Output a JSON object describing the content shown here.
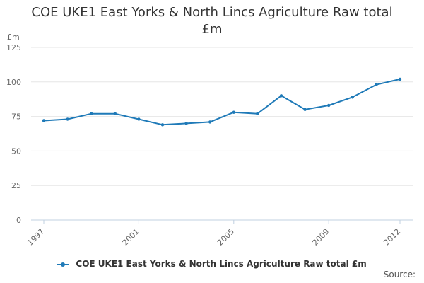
{
  "chart_data": {
    "type": "line",
    "title_lines": [
      "COE UKE1 East Yorks & North Lincs Agriculture Raw total",
      "£m"
    ],
    "y_unit": "£m",
    "xlabel": "",
    "ylabel": "",
    "x": [
      1997,
      1998,
      1999,
      2000,
      2001,
      2002,
      2003,
      2004,
      2005,
      2006,
      2007,
      2008,
      2009,
      2010,
      2011,
      2012
    ],
    "x_tick_labels": [
      "1997",
      "2001",
      "2005",
      "2009",
      "2012"
    ],
    "x_tick_values": [
      1997,
      2001,
      2005,
      2009,
      2012
    ],
    "xlim": [
      1997,
      2012
    ],
    "y_ticks": [
      0,
      25,
      50,
      75,
      100,
      125
    ],
    "ylim": [
      0,
      125
    ],
    "grid": true,
    "legend_position": "bottom",
    "series": [
      {
        "name": "COE UKE1 East Yorks & North Lincs Agriculture Raw total £m",
        "color": "#1f7ab8",
        "values": [
          72,
          73,
          77,
          77,
          73,
          69,
          70,
          71,
          78,
          77,
          90,
          80,
          83,
          89,
          98,
          102
        ]
      }
    ]
  },
  "source_label": "Source:"
}
